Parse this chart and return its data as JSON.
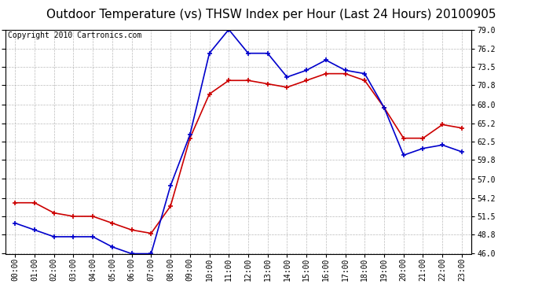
{
  "title": "Outdoor Temperature (vs) THSW Index per Hour (Last 24 Hours) 20100905",
  "copyright": "Copyright 2010 Cartronics.com",
  "hours": [
    "00:00",
    "01:00",
    "02:00",
    "03:00",
    "04:00",
    "05:00",
    "06:00",
    "07:00",
    "08:00",
    "09:00",
    "10:00",
    "11:00",
    "12:00",
    "13:00",
    "14:00",
    "15:00",
    "16:00",
    "17:00",
    "18:00",
    "19:00",
    "20:00",
    "21:00",
    "22:00",
    "23:00"
  ],
  "temp_red": [
    53.5,
    53.5,
    52.0,
    51.5,
    51.5,
    50.5,
    49.5,
    49.0,
    53.0,
    63.0,
    69.5,
    71.5,
    71.5,
    71.0,
    70.5,
    71.5,
    72.5,
    72.5,
    71.5,
    67.5,
    63.0,
    63.0,
    65.0,
    64.5
  ],
  "thsw_blue": [
    50.5,
    49.5,
    48.5,
    48.5,
    48.5,
    47.0,
    46.0,
    46.0,
    56.0,
    63.5,
    75.5,
    79.0,
    75.5,
    75.5,
    72.0,
    73.0,
    74.5,
    73.0,
    72.5,
    67.5,
    60.5,
    61.5,
    62.0,
    61.0
  ],
  "red_color": "#cc0000",
  "blue_color": "#0000cc",
  "bg_color": "#ffffff",
  "plot_bg_color": "#ffffff",
  "grid_color": "#aaaaaa",
  "ylim": [
    46.0,
    79.0
  ],
  "yticks": [
    46.0,
    48.8,
    51.5,
    54.2,
    57.0,
    59.8,
    62.5,
    65.2,
    68.0,
    70.8,
    73.5,
    76.2,
    79.0
  ],
  "title_fontsize": 11,
  "copyright_fontsize": 7,
  "tick_fontsize": 7,
  "marker": "+",
  "linewidth": 1.2,
  "markersize": 5
}
